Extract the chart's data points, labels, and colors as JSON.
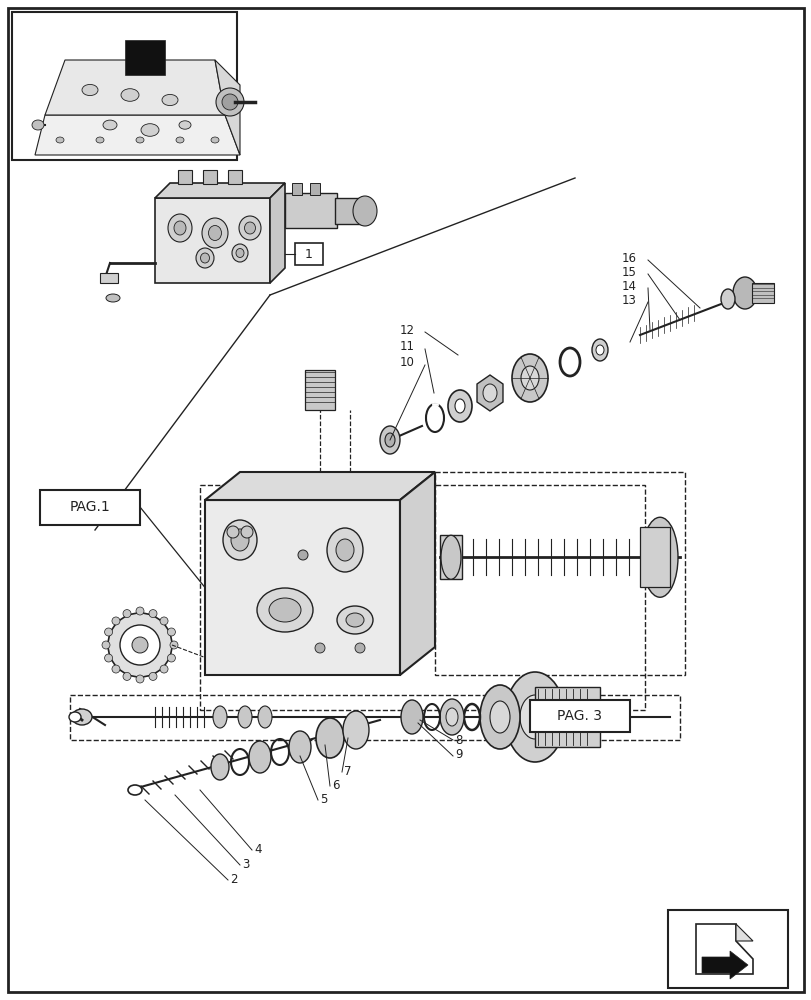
{
  "bg": "#ffffff",
  "lc": "#222222",
  "fw": 8.12,
  "fh": 10.0,
  "dpi": 100
}
